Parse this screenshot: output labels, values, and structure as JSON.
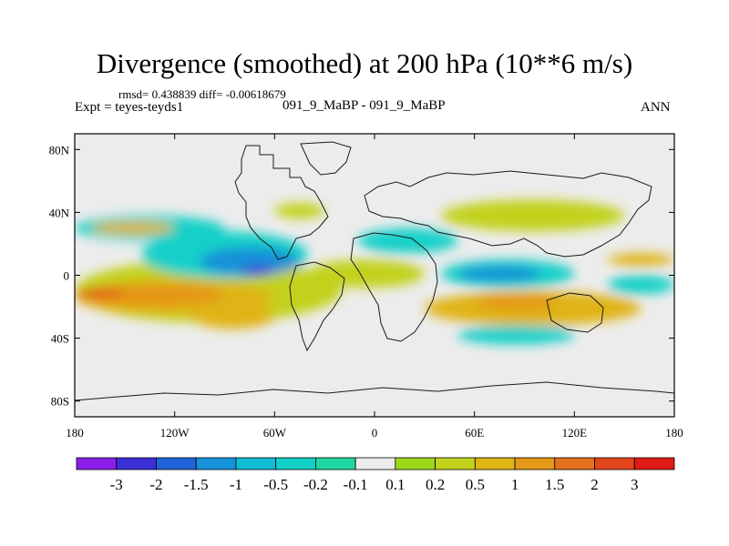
{
  "header": {
    "title": "Divergence (smoothed) at 200 hPa (10**6 m/s)",
    "rmsd_line": "rmsd= 0.438839 diff= -0.00618679",
    "experiment_left": "Expt = teyes-teyds1",
    "experiment_center": "091_9_MaBP - 091_9_MaBP",
    "season": "ANN"
  },
  "chart_data": {
    "type": "heatmap",
    "subtype": "filled-contour map (lon-lat)",
    "title": "Divergence (smoothed) at 200 hPa (10**6 m/s)",
    "xlabel": "",
    "ylabel": "",
    "xlim": [
      -180,
      180
    ],
    "ylim": [
      -90,
      90
    ],
    "x_ticks": [
      {
        "value": -180,
        "label": "180"
      },
      {
        "value": -120,
        "label": "120W"
      },
      {
        "value": -60,
        "label": "60W"
      },
      {
        "value": 0,
        "label": "0"
      },
      {
        "value": 60,
        "label": "60E"
      },
      {
        "value": 120,
        "label": "120E"
      },
      {
        "value": 180,
        "label": "180"
      }
    ],
    "y_ticks": [
      {
        "value": 80,
        "label": "80N"
      },
      {
        "value": 40,
        "label": "40N"
      },
      {
        "value": 0,
        "label": "0"
      },
      {
        "value": -40,
        "label": "40S"
      },
      {
        "value": -80,
        "label": "80S"
      }
    ],
    "colorbar": {
      "labels": [
        "-3",
        "-2",
        "-1.5",
        "-1",
        "-0.5",
        "-0.2",
        "-0.1",
        "0.1",
        "0.2",
        "0.5",
        "1",
        "1.5",
        "2",
        "3"
      ],
      "colors": [
        "#8a1ee8",
        "#3a2fd6",
        "#1f63d8",
        "#1692d8",
        "#10bcd6",
        "#12d0c8",
        "#1ed7a0",
        "#ececec",
        "#9ed81c",
        "#c2d21c",
        "#e0b414",
        "#e49818",
        "#e5701e",
        "#e2441c",
        "#e01a14"
      ]
    },
    "fields": [
      {
        "level": "0.2",
        "lon": [
          -180,
          -20
        ],
        "lat": [
          -30,
          10
        ]
      },
      {
        "level": "0.5",
        "lon": [
          -180,
          -60
        ],
        "lat": [
          -25,
          -3
        ]
      },
      {
        "level": "1",
        "lon": [
          -178,
          -90
        ],
        "lat": [
          -20,
          -5
        ]
      },
      {
        "level": "2",
        "lon": [
          -180,
          -150
        ],
        "lat": [
          -14,
          -9
        ]
      },
      {
        "level": "0.5",
        "lon": [
          -110,
          -60
        ],
        "lat": [
          -34,
          -18
        ]
      },
      {
        "level": "-0.2",
        "lon": [
          -180,
          -90
        ],
        "lat": [
          22,
          38
        ]
      },
      {
        "level": "0.5",
        "lon": [
          -170,
          -120
        ],
        "lat": [
          26,
          34
        ]
      },
      {
        "level": "-0.2",
        "lon": [
          -140,
          -40
        ],
        "lat": [
          -2,
          28
        ]
      },
      {
        "level": "-1",
        "lon": [
          -105,
          -45
        ],
        "lat": [
          0,
          18
        ]
      },
      {
        "level": "-2",
        "lon": [
          -80,
          -60
        ],
        "lat": [
          0,
          6
        ]
      },
      {
        "level": "0.2",
        "lon": [
          -40,
          30
        ],
        "lat": [
          -8,
          10
        ]
      },
      {
        "level": "-0.2",
        "lon": [
          -10,
          50
        ],
        "lat": [
          14,
          30
        ]
      },
      {
        "level": "-0.2",
        "lon": [
          40,
          120
        ],
        "lat": [
          -8,
          10
        ]
      },
      {
        "level": "-1",
        "lon": [
          50,
          100
        ],
        "lat": [
          -4,
          6
        ]
      },
      {
        "level": "0.5",
        "lon": [
          30,
          160
        ],
        "lat": [
          -32,
          -10
        ]
      },
      {
        "level": "1",
        "lon": [
          60,
          110
        ],
        "lat": [
          -22,
          -12
        ]
      },
      {
        "level": "0.2",
        "lon": [
          40,
          150
        ],
        "lat": [
          28,
          48
        ]
      },
      {
        "level": "0.5",
        "lon": [
          140,
          180
        ],
        "lat": [
          6,
          14
        ]
      },
      {
        "level": "-0.2",
        "lon": [
          140,
          180
        ],
        "lat": [
          -12,
          0
        ]
      },
      {
        "level": "-0.2",
        "lon": [
          50,
          120
        ],
        "lat": [
          -44,
          -32
        ]
      },
      {
        "level": "0.2",
        "lon": [
          -60,
          -30
        ],
        "lat": [
          36,
          46
        ]
      }
    ]
  }
}
